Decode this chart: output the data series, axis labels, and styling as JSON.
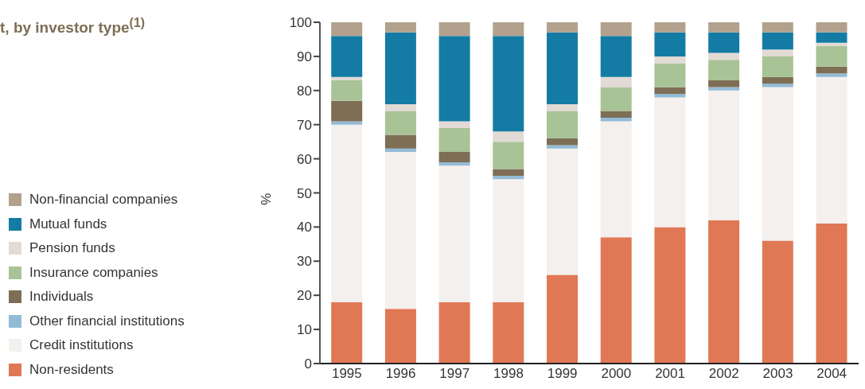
{
  "chart_data": {
    "type": "bar",
    "stacked": true,
    "title": "t, by investor type$^{(1)}$",
    "ylabel": "%",
    "categories": [
      "1995",
      "1996",
      "1997",
      "1998",
      "1999",
      "2000",
      "2001",
      "2002",
      "2003",
      "2004"
    ],
    "series": [
      {
        "name": "Non-residents",
        "color": "#e07856",
        "values": [
          18,
          16,
          18,
          18,
          26,
          37,
          40,
          42,
          36,
          41
        ]
      },
      {
        "name": "Credit institutions",
        "color": "#f4f0ed",
        "values": [
          52,
          46,
          40,
          36,
          37,
          34,
          38,
          38,
          45,
          43
        ]
      },
      {
        "name": "Other financial institutions",
        "color": "#93bbd6",
        "values": [
          1,
          1,
          1,
          1,
          1,
          1,
          1,
          1,
          1,
          1
        ]
      },
      {
        "name": "Individuals",
        "color": "#7d6e55",
        "values": [
          6,
          4,
          3,
          2,
          2,
          2,
          2,
          2,
          2,
          2
        ]
      },
      {
        "name": "Insurance companies",
        "color": "#a8c396",
        "values": [
          6,
          7,
          7,
          8,
          8,
          7,
          7,
          6,
          6,
          6
        ]
      },
      {
        "name": "Pension funds",
        "color": "#e2dad4",
        "values": [
          1,
          2,
          2,
          3,
          2,
          3,
          2,
          2,
          2,
          1
        ]
      },
      {
        "name": "Mutual funds",
        "color": "#147ca4",
        "values": [
          12,
          21,
          25,
          28,
          21,
          12,
          7,
          6,
          5,
          3
        ]
      },
      {
        "name": "Non-financial companies",
        "color": "#b1a18d",
        "values": [
          4,
          3,
          4,
          4,
          3,
          4,
          3,
          3,
          3,
          3
        ]
      }
    ],
    "ylim": [
      0,
      100
    ],
    "yticks": [
      0,
      10,
      20,
      30,
      40,
      50,
      60,
      70,
      80,
      90,
      100
    ],
    "grid": false,
    "legend": "left"
  }
}
